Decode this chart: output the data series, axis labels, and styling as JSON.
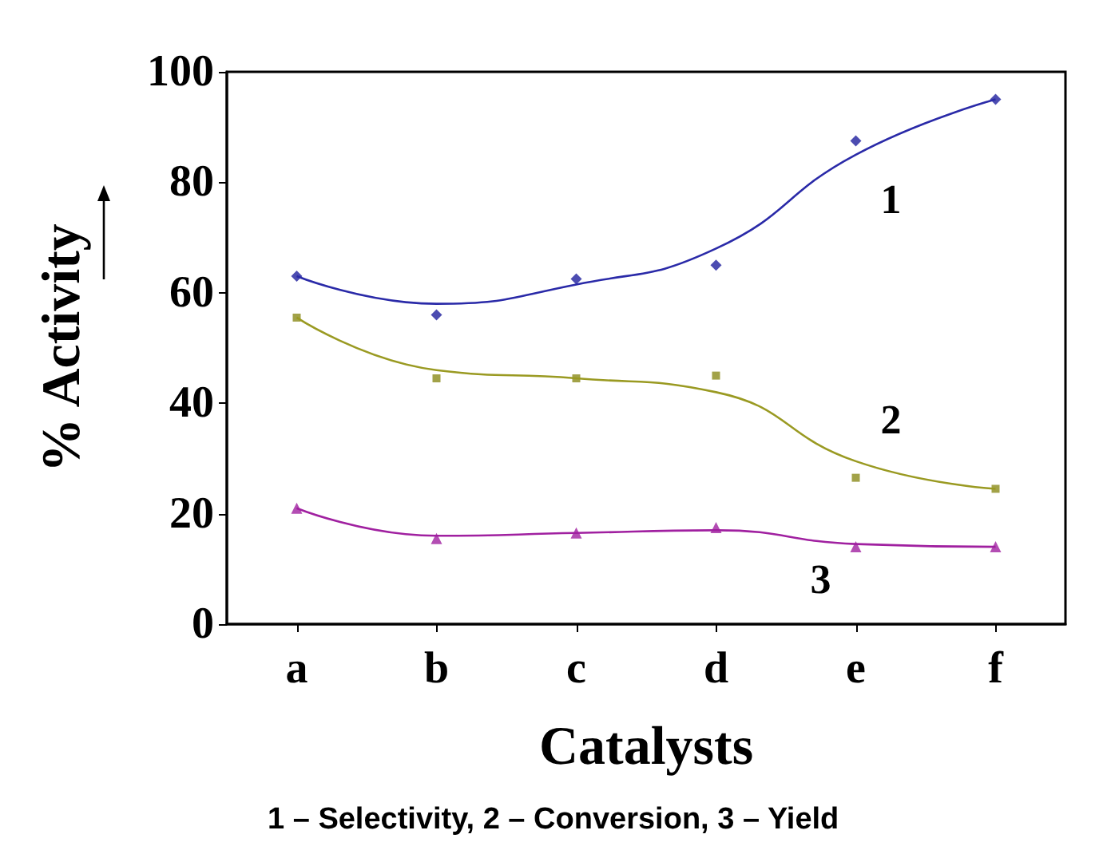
{
  "chart_data": {
    "type": "line",
    "xlabel": "Catalysts",
    "ylabel": "% Activity",
    "categories": [
      "a",
      "b",
      "c",
      "d",
      "e",
      "f"
    ],
    "series": [
      {
        "type": "scatter",
        "marker": "diamond",
        "color": "#1f1f9e",
        "values": [
          63,
          56,
          62.5,
          65,
          87.5,
          95
        ]
      },
      {
        "type": "scatter",
        "marker": "square",
        "color": "#8b8b1a",
        "values": [
          55.5,
          44.5,
          44.5,
          45,
          26.5,
          24.5
        ]
      },
      {
        "type": "scatter",
        "marker": "triangle",
        "color": "#a020a0",
        "values": [
          21,
          15.5,
          16.5,
          17.5,
          14,
          14
        ]
      },
      {
        "name": "1",
        "color": "#2a2aa8",
        "marker": "none",
        "x": [
          "a",
          "b",
          "c",
          "d",
          "e",
          "f"
        ],
        "values": [
          63,
          58,
          61.5,
          68,
          85,
          95
        ]
      },
      {
        "name": "2",
        "color": "#9a9a22",
        "marker": "none",
        "x": [
          "a",
          "b",
          "c",
          "d",
          "e",
          "f"
        ],
        "values": [
          55.5,
          46,
          44.5,
          42,
          29.5,
          24.5
        ]
      },
      {
        "name": "3",
        "color": "#a020a0",
        "marker": "none",
        "x": [
          "a",
          "b",
          "c",
          "d",
          "e",
          "f"
        ],
        "values": [
          21,
          16,
          16.5,
          17,
          14.5,
          14
        ]
      }
    ],
    "ylim": [
      0,
      100
    ],
    "yticks": [
      0,
      20,
      40,
      60,
      80,
      100
    ],
    "grid": false,
    "legend": false,
    "annotations": [
      "1 – Selectivity, 2 – Conversion, 3 – Yield"
    ]
  }
}
